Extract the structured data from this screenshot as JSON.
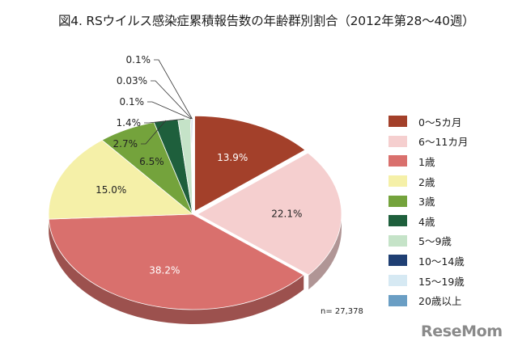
{
  "title": "図4. RSウイルス感染症累積報告数の年齢群別割合（2012年第28〜40週）",
  "note": "n= 27,378",
  "brand": "ReseMom",
  "chart_data": {
    "type": "pie",
    "title": "図4. RSウイルス感染症累積報告数の年齢群別割合（2012年第28〜40週）",
    "slices": [
      {
        "label": "0〜5カ月",
        "value": 13.9,
        "value_label": "13.9%",
        "color": "#a3402a"
      },
      {
        "label": "6〜11カ月",
        "value": 22.1,
        "value_label": "22.1%",
        "color": "#f5cfcf"
      },
      {
        "label": "1歳",
        "value": 38.2,
        "value_label": "38.2%",
        "color": "#d9706d"
      },
      {
        "label": "2歳",
        "value": 15.0,
        "value_label": "15.0%",
        "color": "#f5f0a8"
      },
      {
        "label": "3歳",
        "value": 6.5,
        "value_label": "6.5%",
        "color": "#74a33c"
      },
      {
        "label": "4歳",
        "value": 2.7,
        "value_label": "2.7%",
        "color": "#1e5f3c"
      },
      {
        "label": "5〜9歳",
        "value": 1.4,
        "value_label": "1.4%",
        "color": "#c5e3c8"
      },
      {
        "label": "10〜14歳",
        "value": 0.1,
        "value_label": "0.1%",
        "color": "#1f3f73"
      },
      {
        "label": "15〜19歳",
        "value": 0.03,
        "value_label": "0.03%",
        "color": "#d6e9f3"
      },
      {
        "label": "20歳以上",
        "value": 0.1,
        "value_label": "0.1%",
        "color": "#6a9ec4"
      }
    ],
    "legend_position": "right"
  }
}
